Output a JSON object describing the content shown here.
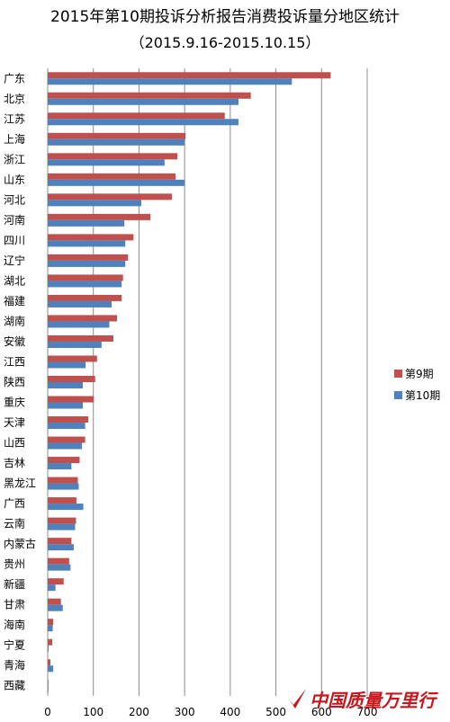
{
  "chart_data": {
    "type": "bar",
    "orientation": "horizontal",
    "title": "2015年第10期投诉分析报告消费投诉量分地区统计",
    "subtitle": "（2015.9.16-2015.10.15）",
    "categories": [
      "广东",
      "北京",
      "江苏",
      "上海",
      "浙江",
      "山东",
      "河北",
      "河南",
      "四川",
      "辽宁",
      "湖北",
      "福建",
      "湖南",
      "安徽",
      "江西",
      "陕西",
      "重庆",
      "天津",
      "山西",
      "吉林",
      "黑龙江",
      "广西",
      "云南",
      "内蒙古",
      "贵州",
      "新疆",
      "甘肃",
      "海南",
      "宁夏",
      "青海",
      "西藏"
    ],
    "series": [
      {
        "name": "第9期",
        "color": "#c0504d",
        "values": [
          620,
          445,
          388,
          302,
          284,
          280,
          272,
          225,
          188,
          176,
          165,
          162,
          152,
          144,
          108,
          104,
          101,
          89,
          82,
          70,
          66,
          63,
          62,
          52,
          47,
          35,
          29,
          12,
          10,
          6,
          1
        ]
      },
      {
        "name": "第10期",
        "color": "#4f81bd",
        "values": [
          535,
          418,
          418,
          300,
          256,
          300,
          205,
          168,
          170,
          170,
          162,
          140,
          135,
          118,
          83,
          77,
          77,
          82,
          75,
          52,
          68,
          78,
          60,
          57,
          50,
          17,
          33,
          11,
          2,
          12,
          1
        ]
      }
    ],
    "xlim": [
      0,
      700
    ],
    "xticks": [
      0,
      100,
      200,
      300,
      400,
      500,
      600,
      700
    ],
    "legend_position": "right",
    "grid": "vertical"
  },
  "watermark": "中国质量万里行"
}
